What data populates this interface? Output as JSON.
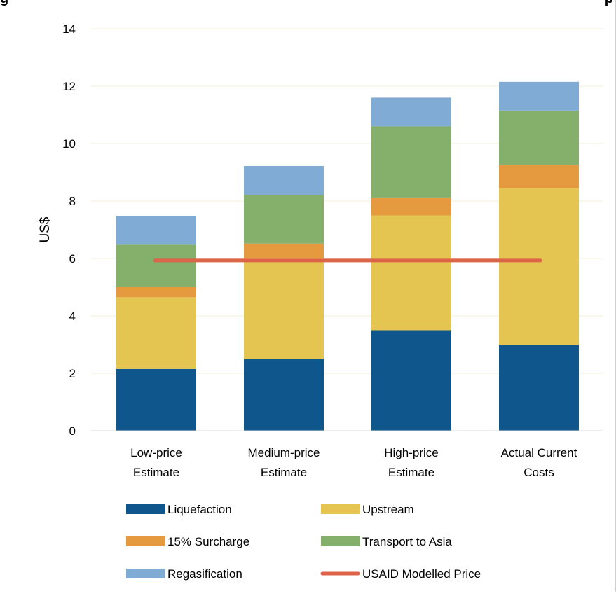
{
  "chart_data": {
    "type": "bar",
    "stacked": true,
    "title": "",
    "xlabel": "",
    "ylabel": "US$",
    "ylim": [
      0,
      14
    ],
    "yticks": [
      0,
      2,
      4,
      6,
      8,
      10,
      12,
      14
    ],
    "grid": true,
    "legend_position": "bottom",
    "categories": [
      [
        "Low-price",
        "Estimate"
      ],
      [
        "Medium-price",
        "Estimate"
      ],
      [
        "High-price",
        "Estimate"
      ],
      [
        "Actual Current",
        "Costs"
      ]
    ],
    "series": [
      {
        "name": "Liquefaction",
        "color": "#0e568c",
        "values": [
          2.15,
          2.5,
          3.5,
          3.0
        ]
      },
      {
        "name": "Upstream",
        "color": "#e4c551",
        "values": [
          2.5,
          3.5,
          4.0,
          5.45
        ]
      },
      {
        "name": "15% Surcharge",
        "color": "#e59a40",
        "values": [
          0.35,
          0.52,
          0.6,
          0.8
        ]
      },
      {
        "name": "Transport to Asia",
        "color": "#85b06c",
        "values": [
          1.48,
          1.7,
          2.5,
          1.9
        ]
      },
      {
        "name": "Regasification",
        "color": "#7fabd4",
        "values": [
          1.0,
          1.0,
          1.0,
          1.0
        ]
      }
    ],
    "line_series": {
      "name": "USAID Modelled Price",
      "color": "#dd6449",
      "value": 5.93,
      "span": [
        "Low-price Estimate",
        "Actual Current Costs"
      ]
    },
    "legend": [
      "Liquefaction",
      "Upstream",
      "15% Surcharge",
      "Transport to Asia",
      "Regasification",
      "USAID Modelled Price"
    ]
  }
}
